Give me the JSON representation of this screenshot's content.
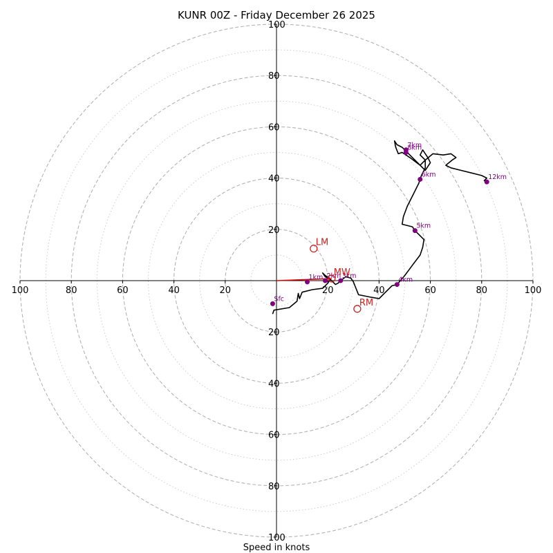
{
  "chart_data": {
    "type": "scatter",
    "subtype": "hodograph",
    "title": "KUNR 00Z - Friday December 26 2025",
    "xlabel": "Speed in knots",
    "xlim": [
      -100,
      100
    ],
    "ylim": [
      -100,
      100
    ],
    "rings_major": [
      20,
      40,
      60,
      80,
      100
    ],
    "rings_minor": [
      10,
      30,
      50,
      70,
      90
    ],
    "x_tick_labels": [
      "100",
      "80",
      "60",
      "40",
      "20",
      "20",
      "40",
      "60",
      "80",
      "100"
    ],
    "y_tick_labels": [
      "100",
      "80",
      "60",
      "40",
      "20",
      "20",
      "40",
      "60",
      "80",
      "100"
    ],
    "trace": [
      [
        -1.5,
        -13
      ],
      [
        -1,
        -11.5
      ],
      [
        5,
        -10.5
      ],
      [
        8,
        -8
      ],
      [
        8.5,
        -5
      ],
      [
        9,
        -7
      ],
      [
        10,
        -4.5
      ],
      [
        14,
        -3.5
      ],
      [
        18,
        -3
      ],
      [
        19,
        -2
      ],
      [
        20,
        -1
      ],
      [
        21,
        0.5
      ],
      [
        19,
        1.5
      ],
      [
        18,
        3
      ],
      [
        19,
        2
      ],
      [
        20.5,
        1
      ],
      [
        22,
        -0.5
      ],
      [
        23,
        -1.5
      ],
      [
        24,
        -1
      ],
      [
        25,
        0
      ],
      [
        27,
        1.5
      ],
      [
        29,
        1
      ],
      [
        30,
        -0.5
      ],
      [
        32,
        -5.5
      ],
      [
        37,
        -6.5
      ],
      [
        40,
        -7
      ],
      [
        42,
        -5
      ],
      [
        45,
        -2
      ],
      [
        47,
        -1.5
      ],
      [
        50,
        2
      ],
      [
        53,
        6
      ],
      [
        56,
        10
      ],
      [
        57,
        13
      ],
      [
        57.5,
        16
      ],
      [
        55.5,
        18
      ],
      [
        54,
        19.5
      ],
      [
        53,
        21
      ],
      [
        49,
        22
      ],
      [
        49.5,
        25
      ],
      [
        51,
        29
      ],
      [
        53.5,
        34
      ],
      [
        55.5,
        38
      ],
      [
        56.5,
        41
      ],
      [
        58,
        44
      ],
      [
        58,
        47
      ],
      [
        56,
        49
      ],
      [
        57,
        51
      ],
      [
        59,
        48
      ],
      [
        60,
        46
      ],
      [
        58,
        43
      ],
      [
        53,
        48
      ],
      [
        50,
        51
      ],
      [
        49,
        52
      ],
      [
        47,
        53
      ],
      [
        46,
        54.5
      ],
      [
        46.5,
        52
      ],
      [
        47.5,
        49.5
      ],
      [
        49,
        50
      ],
      [
        52,
        48
      ],
      [
        56,
        45
      ],
      [
        58,
        47
      ],
      [
        61,
        49.5
      ],
      [
        65,
        49
      ],
      [
        68,
        49.5
      ],
      [
        70,
        48
      ],
      [
        68.5,
        47
      ],
      [
        66,
        45
      ],
      [
        68,
        44
      ],
      [
        72,
        43
      ],
      [
        76,
        42
      ],
      [
        80,
        41
      ],
      [
        82,
        40
      ],
      [
        81,
        39
      ],
      [
        82,
        38.5
      ]
    ],
    "levels": [
      {
        "label": "Sfc",
        "u": -1.5,
        "v": -9
      },
      {
        "label": "1km",
        "u": 12,
        "v": -0.5
      },
      {
        "label": "2km",
        "u": 19,
        "v": 0
      },
      {
        "label": "3km",
        "u": 25,
        "v": 0
      },
      {
        "label": "4km",
        "u": 47,
        "v": -1.5
      },
      {
        "label": "5km",
        "u": 54,
        "v": 19.5
      },
      {
        "label": "6km",
        "u": 56,
        "v": 39.5
      },
      {
        "label": "7km",
        "u": 50.5,
        "v": 51
      },
      {
        "label": "8km",
        "u": 50.5,
        "v": 50
      },
      {
        "label": "12km",
        "u": 82,
        "v": 38.5
      }
    ],
    "motions": [
      {
        "label": "LM",
        "u": 14.5,
        "v": 12.5
      },
      {
        "label": "MW",
        "u": 21.5,
        "v": 0.8
      },
      {
        "label": "RM",
        "u": 31.5,
        "v": -11
      }
    ],
    "shear_vector": {
      "from": [
        0,
        0
      ],
      "to": [
        21.5,
        0.8
      ]
    },
    "colors": {
      "trace": "#000000",
      "level_marker": "#800080",
      "motion": "#cc2020",
      "shear": "#e00000",
      "ring_major": "#b3b3b3",
      "ring_minor": "#cccccc"
    }
  }
}
